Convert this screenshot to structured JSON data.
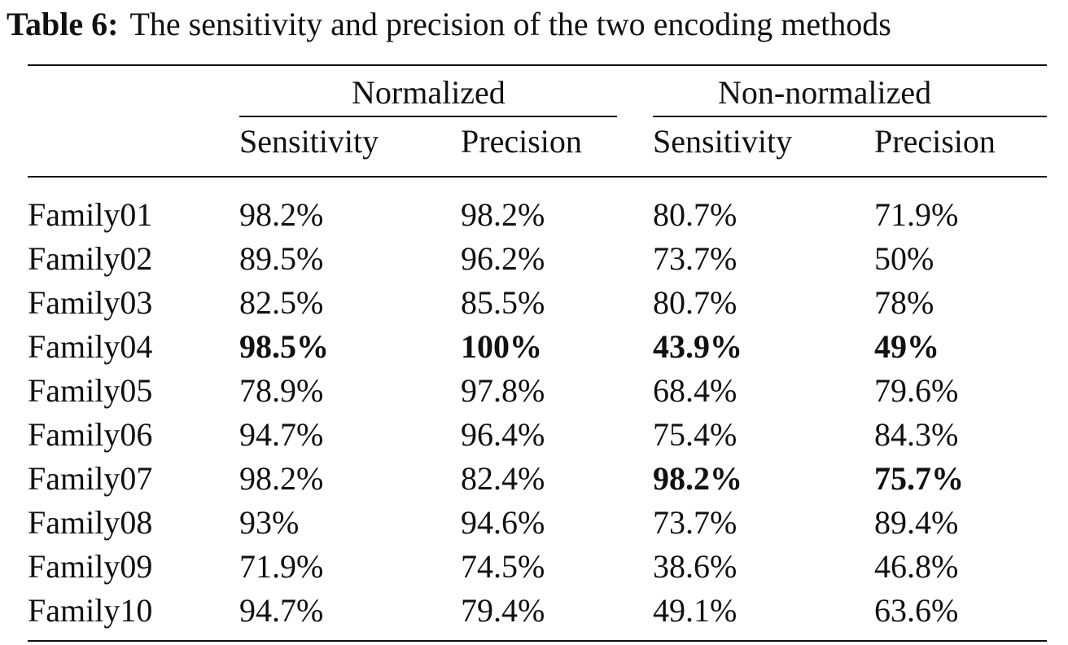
{
  "caption": {
    "label": "Table 6:",
    "text": "The sensitivity and precision of the two encoding methods"
  },
  "table": {
    "groups": [
      "Normalized",
      "Non-normalized"
    ],
    "columns": [
      "Sensitivity",
      "Precision",
      "Sensitivity",
      "Precision"
    ],
    "rows": [
      {
        "name": "Family01",
        "values": [
          "98.2%",
          "98.2%",
          "80.7%",
          "71.9%"
        ],
        "bold": [
          false,
          false,
          false,
          false
        ]
      },
      {
        "name": "Family02",
        "values": [
          "89.5%",
          "96.2%",
          "73.7%",
          "50%"
        ],
        "bold": [
          false,
          false,
          false,
          false
        ]
      },
      {
        "name": "Family03",
        "values": [
          "82.5%",
          "85.5%",
          "80.7%",
          "78%"
        ],
        "bold": [
          false,
          false,
          false,
          false
        ]
      },
      {
        "name": "Family04",
        "values": [
          "98.5%",
          "100%",
          "43.9%",
          "49%"
        ],
        "bold": [
          true,
          true,
          true,
          true
        ]
      },
      {
        "name": "Family05",
        "values": [
          "78.9%",
          "97.8%",
          "68.4%",
          "79.6%"
        ],
        "bold": [
          false,
          false,
          false,
          false
        ]
      },
      {
        "name": "Family06",
        "values": [
          "94.7%",
          "96.4%",
          "75.4%",
          "84.3%"
        ],
        "bold": [
          false,
          false,
          false,
          false
        ]
      },
      {
        "name": "Family07",
        "values": [
          "98.2%",
          "82.4%",
          "98.2%",
          "75.7%"
        ],
        "bold": [
          false,
          false,
          true,
          true
        ]
      },
      {
        "name": "Family08",
        "values": [
          "93%",
          "94.6%",
          "73.7%",
          "89.4%"
        ],
        "bold": [
          false,
          false,
          false,
          false
        ]
      },
      {
        "name": "Family09",
        "values": [
          "71.9%",
          "74.5%",
          "38.6%",
          "46.8%"
        ],
        "bold": [
          false,
          false,
          false,
          false
        ]
      },
      {
        "name": "Family10",
        "values": [
          "94.7%",
          "79.4%",
          "49.1%",
          "63.6%"
        ],
        "bold": [
          false,
          false,
          false,
          false
        ]
      }
    ]
  }
}
